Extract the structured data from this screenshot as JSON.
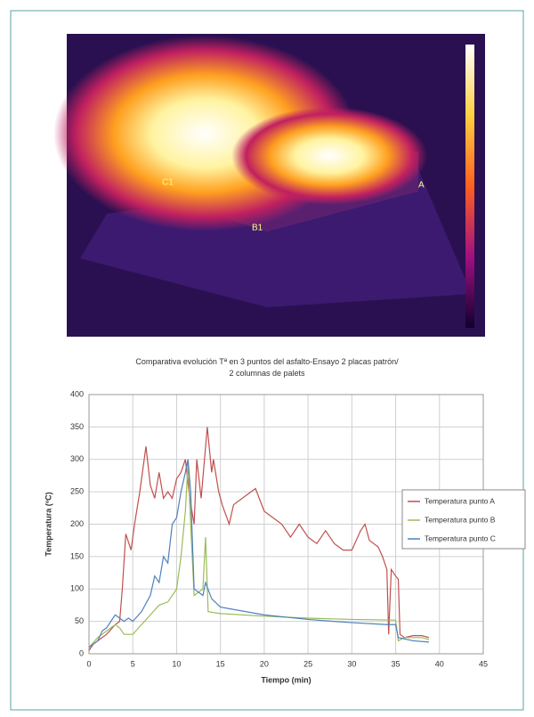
{
  "image": {
    "labels": [
      "C1",
      "B1",
      "A"
    ]
  },
  "chart_data": {
    "type": "line",
    "title": "Comparativa evolución  Tª en 3 puntos del asfalto-Ensayo  2 placas patrón/\n2 columnas de palets",
    "x_label": "Tiempo (min)",
    "y_label": "Temperatura (ºC)",
    "xlim": [
      0,
      45
    ],
    "xticks": [
      0,
      5,
      10,
      15,
      20,
      25,
      30,
      35,
      40,
      45
    ],
    "ylim": [
      0,
      400
    ],
    "yticks": [
      0,
      50,
      100,
      150,
      200,
      250,
      300,
      350,
      400
    ],
    "grid": true,
    "legend": "right",
    "series": [
      {
        "name": "Temperatura punto A",
        "color": "#c0504d",
        "x": [
          0,
          0.5,
          2,
          3,
          3.5,
          3.8,
          4.2,
          4.8,
          5.2,
          5.8,
          6.5,
          7,
          7.5,
          8,
          8.5,
          9,
          9.5,
          10,
          10.5,
          11,
          11.5,
          12,
          12.3,
          12.8,
          13.5,
          14,
          14.2,
          14.8,
          15.2,
          16,
          16.5,
          17.5,
          18.5,
          19,
          20,
          21,
          22,
          23,
          24,
          25,
          26,
          27,
          28,
          29,
          30,
          31,
          31.5,
          32,
          33,
          33.5,
          34,
          34.2,
          34.5,
          35,
          35.3,
          35.5,
          36,
          37,
          38,
          38.8
        ],
        "values": [
          5,
          15,
          30,
          45,
          50,
          100,
          185,
          160,
          200,
          250,
          320,
          260,
          240,
          280,
          240,
          250,
          240,
          270,
          280,
          300,
          240,
          200,
          300,
          240,
          350,
          280,
          300,
          250,
          230,
          200,
          230,
          240,
          250,
          255,
          220,
          210,
          200,
          180,
          200,
          180,
          170,
          190,
          170,
          160,
          160,
          190,
          200,
          175,
          165,
          150,
          130,
          30,
          130,
          120,
          115,
          30,
          25,
          28,
          28,
          25
        ]
      },
      {
        "name": "Temperatura punto B",
        "color": "#9bbb59",
        "x": [
          0,
          1,
          2,
          3,
          3.5,
          4,
          5,
          6,
          7,
          8,
          9,
          9.5,
          10,
          10.5,
          11,
          11.3,
          11.6,
          12,
          13,
          13.3,
          13.6,
          15,
          20,
          25,
          30,
          35,
          35.3,
          36,
          38,
          38.8
        ],
        "values": [
          10,
          25,
          35,
          45,
          40,
          30,
          30,
          45,
          60,
          75,
          80,
          90,
          100,
          150,
          220,
          295,
          200,
          90,
          100,
          180,
          65,
          62,
          58,
          55,
          53,
          52,
          20,
          25,
          25,
          22
        ]
      },
      {
        "name": "Temperatura punto C",
        "color": "#4f81bd",
        "x": [
          0,
          1,
          1.5,
          2,
          2.5,
          3,
          3.5,
          4,
          4.5,
          5,
          6,
          7,
          7.5,
          8,
          8.5,
          9,
          9.5,
          10,
          10.5,
          11,
          11.3,
          11.6,
          12,
          13,
          13.3,
          14,
          15,
          20,
          25,
          30,
          34,
          35,
          35.3,
          37,
          38.8
        ],
        "values": [
          10,
          20,
          35,
          40,
          50,
          60,
          55,
          50,
          55,
          50,
          65,
          90,
          120,
          110,
          150,
          140,
          200,
          210,
          250,
          280,
          300,
          250,
          100,
          90,
          110,
          85,
          72,
          60,
          53,
          48,
          45,
          45,
          25,
          20,
          18
        ]
      }
    ]
  }
}
